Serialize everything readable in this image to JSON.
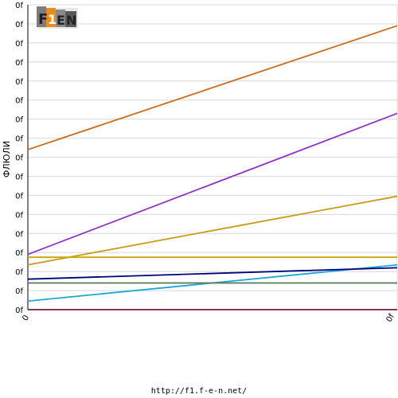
{
  "logo": {
    "text": "F1EN"
  },
  "footer": {
    "url": "http://f1.f-e-n.net/"
  },
  "chart_data": {
    "type": "line",
    "ylabel": "ФЛЮЛИ",
    "xlabel": "",
    "title": "",
    "x": [
      0,
      1
    ],
    "x_tick_labels": [
      "0",
      "0f"
    ],
    "y_tick_labels": [
      "0f",
      "0f",
      "0f",
      "0f",
      "0f",
      "0f",
      "0f",
      "0f",
      "0f",
      "0f",
      "0f",
      "0f",
      "0f",
      "0f",
      "0f",
      "0f",
      "0f"
    ],
    "ylim": [
      0,
      16
    ],
    "grid": true,
    "legend": "none",
    "series": [
      {
        "color": "#cc6a1a",
        "values": [
          8.4,
          14.9
        ]
      },
      {
        "color": "#9035c8",
        "values": [
          2.9,
          10.3
        ]
      },
      {
        "color": "#cc9a1a",
        "values": [
          2.35,
          5.95
        ]
      },
      {
        "color": "#c8a800",
        "values": [
          2.75,
          2.75
        ]
      },
      {
        "color": "#1aa8d8",
        "values": [
          0.45,
          2.35
        ]
      },
      {
        "color": "#00007a",
        "values": [
          1.6,
          2.2
        ]
      },
      {
        "color": "#557755",
        "values": [
          1.4,
          1.4
        ]
      },
      {
        "color": "#7a1a3a",
        "values": [
          0.0,
          0.0
        ]
      }
    ]
  }
}
